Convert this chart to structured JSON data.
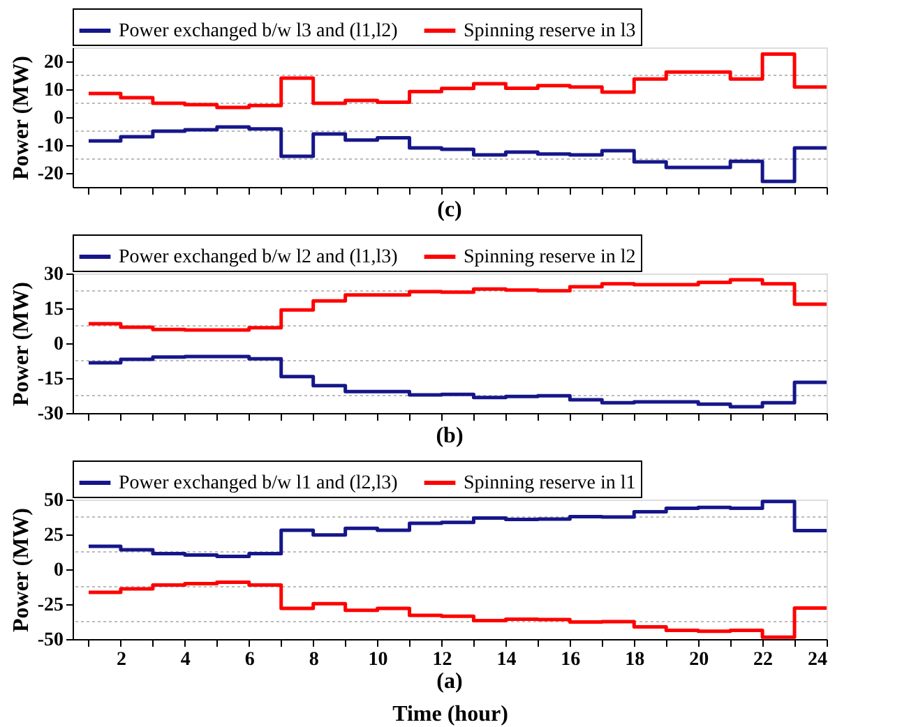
{
  "chart_data": [
    {
      "type": "step",
      "ylabel": "Power (MW)",
      "annotations": [
        "(c)"
      ],
      "legend": "top",
      "grid": "y",
      "tick_labels": "y",
      "line_style": "solid",
      "marker": "none",
      "x": [
        1,
        2,
        3,
        4,
        5,
        6,
        7,
        8,
        9,
        10,
        11,
        12,
        13,
        14,
        15,
        16,
        17,
        18,
        19,
        20,
        21,
        22,
        23,
        24
      ],
      "xlim": [
        0.5,
        24
      ],
      "xticks": [
        {
          "value": 1,
          "label": null
        },
        {
          "value": 2,
          "label": null
        },
        {
          "value": 3,
          "label": null
        },
        {
          "value": 4,
          "label": null
        },
        {
          "value": 5,
          "label": null
        },
        {
          "value": 6,
          "label": null
        },
        {
          "value": 7,
          "label": null
        },
        {
          "value": 8,
          "label": null
        },
        {
          "value": 9,
          "label": null
        },
        {
          "value": 10,
          "label": null
        },
        {
          "value": 11,
          "label": null
        },
        {
          "value": 12,
          "label": null
        },
        {
          "value": 13,
          "label": null
        },
        {
          "value": 14,
          "label": null
        },
        {
          "value": 15,
          "label": null
        },
        {
          "value": 16,
          "label": null
        },
        {
          "value": 17,
          "label": null
        },
        {
          "value": 18,
          "label": null
        },
        {
          "value": 19,
          "label": null
        },
        {
          "value": 20,
          "label": null
        },
        {
          "value": 21,
          "label": null
        },
        {
          "value": 22,
          "label": null
        },
        {
          "value": 23,
          "label": null
        },
        {
          "value": 24,
          "label": null
        }
      ],
      "ylim": [
        -25,
        25
      ],
      "yticks": [
        -20,
        {
          "value": -15,
          "label": null
        },
        -10,
        {
          "value": -5,
          "label": null
        },
        0,
        {
          "value": 5,
          "label": null
        },
        10,
        {
          "value": 15,
          "label": null
        },
        20
      ],
      "series": [
        {
          "name": "Power exchanged b/w l3 and (l1,l2)",
          "color": "#16168a",
          "values": [
            -8.5,
            -7,
            -5,
            -4.5,
            -3.5,
            -4.2,
            -14,
            -6,
            -8.2,
            -7.4,
            -11,
            -11.5,
            -13.5,
            -12.5,
            -13.2,
            -13.5,
            -12,
            -16,
            -18,
            -18,
            -15.8,
            -23,
            -11,
            -11
          ]
        },
        {
          "name": "Spinning reserve in l3",
          "color": "#ff0000",
          "values": [
            8.5,
            7,
            5,
            4.5,
            3.5,
            4.2,
            14,
            5,
            6,
            5.4,
            9.2,
            10.3,
            12,
            10.4,
            11.3,
            10.8,
            9,
            13.7,
            16.2,
            16.2,
            13.7,
            22.6,
            10.8,
            10.8
          ]
        }
      ]
    },
    {
      "type": "step",
      "ylabel": "Power (MW)",
      "annotations": [
        "(b)"
      ],
      "legend": "top",
      "grid": "y",
      "tick_labels": "y",
      "line_style": "solid",
      "marker": "none",
      "x": [
        1,
        2,
        3,
        4,
        5,
        6,
        7,
        8,
        9,
        10,
        11,
        12,
        13,
        14,
        15,
        16,
        17,
        18,
        19,
        20,
        21,
        22,
        23,
        24
      ],
      "xlim": [
        0.5,
        24
      ],
      "xticks": [
        {
          "value": 1,
          "label": null
        },
        {
          "value": 2,
          "label": null
        },
        {
          "value": 3,
          "label": null
        },
        {
          "value": 4,
          "label": null
        },
        {
          "value": 5,
          "label": null
        },
        {
          "value": 6,
          "label": null
        },
        {
          "value": 7,
          "label": null
        },
        {
          "value": 8,
          "label": null
        },
        {
          "value": 9,
          "label": null
        },
        {
          "value": 10,
          "label": null
        },
        {
          "value": 11,
          "label": null
        },
        {
          "value": 12,
          "label": null
        },
        {
          "value": 13,
          "label": null
        },
        {
          "value": 14,
          "label": null
        },
        {
          "value": 15,
          "label": null
        },
        {
          "value": 16,
          "label": null
        },
        {
          "value": 17,
          "label": null
        },
        {
          "value": 18,
          "label": null
        },
        {
          "value": 19,
          "label": null
        },
        {
          "value": 20,
          "label": null
        },
        {
          "value": 21,
          "label": null
        },
        {
          "value": 22,
          "label": null
        },
        {
          "value": 23,
          "label": null
        },
        {
          "value": 24,
          "label": null
        }
      ],
      "ylim": [
        -30,
        30
      ],
      "yticks": [
        -30,
        {
          "value": -22.5,
          "label": null
        },
        -15,
        {
          "value": -7.5,
          "label": null
        },
        0,
        {
          "value": 7.5,
          "label": null
        },
        15,
        {
          "value": 22.5,
          "label": null
        },
        30
      ],
      "series": [
        {
          "name": "Power exchanged b/w l2 and (l1,l3)",
          "color": "#16168a",
          "values": [
            -8.4,
            -6.9,
            -5.9,
            -5.7,
            -5.7,
            -6.7,
            -14.3,
            -18.2,
            -20.8,
            -20.8,
            -22.2,
            -22,
            -23.3,
            -22.9,
            -22.6,
            -24.3,
            -25.6,
            -25.2,
            -25.2,
            -26.2,
            -27.3,
            -25.6,
            -16.8,
            -16.8
          ]
        },
        {
          "name": "Spinning reserve in l2",
          "color": "#ff0000",
          "values": [
            8.4,
            6.9,
            5.9,
            5.7,
            5.7,
            6.7,
            14.3,
            18.2,
            20.8,
            20.8,
            22.2,
            22,
            23.3,
            22.9,
            22.6,
            24.3,
            25.6,
            25.2,
            25.2,
            26.2,
            27.3,
            25.6,
            16.8,
            16.8
          ]
        }
      ]
    },
    {
      "type": "step",
      "ylabel": "Power (MW)",
      "xlabel": "Time (hour)",
      "annotations": [
        "(a)"
      ],
      "legend": "top",
      "grid": "y",
      "line_style": "solid",
      "marker": "none",
      "x": [
        1,
        2,
        3,
        4,
        5,
        6,
        7,
        8,
        9,
        10,
        11,
        12,
        13,
        14,
        15,
        16,
        17,
        18,
        19,
        20,
        21,
        22,
        23,
        24
      ],
      "xlim": [
        0.5,
        24
      ],
      "xticks": [
        {
          "value": 1,
          "label": null
        },
        2,
        {
          "value": 3,
          "label": null
        },
        4,
        {
          "value": 5,
          "label": null
        },
        6,
        {
          "value": 7,
          "label": null
        },
        8,
        {
          "value": 9,
          "label": null
        },
        10,
        {
          "value": 11,
          "label": null
        },
        12,
        {
          "value": 13,
          "label": null
        },
        14,
        {
          "value": 15,
          "label": null
        },
        16,
        {
          "value": 17,
          "label": null
        },
        18,
        {
          "value": 19,
          "label": null
        },
        20,
        {
          "value": 21,
          "label": null
        },
        22,
        {
          "value": 23,
          "label": null
        },
        24
      ],
      "ylim": [
        -50,
        50
      ],
      "yticks": [
        -50,
        {
          "value": -37.5,
          "label": null
        },
        -25,
        {
          "value": -12.5,
          "label": null
        },
        0,
        {
          "value": 12.5,
          "label": null
        },
        25,
        {
          "value": 37.5,
          "label": null
        },
        50
      ],
      "series": [
        {
          "name": "Power exchanged b/w l1 and (l2,l3)",
          "color": "#16168a",
          "values": [
            16.5,
            14,
            11.3,
            10.3,
            9.2,
            11.3,
            28,
            24.6,
            29.4,
            28,
            33,
            33.6,
            36.8,
            35.7,
            36,
            37.8,
            37.5,
            41.3,
            43.7,
            44.4,
            43.7,
            48.6,
            27.7,
            27.7
          ]
        },
        {
          "name": "Spinning reserve in l1",
          "color": "#ff0000",
          "values": [
            -16.5,
            -14,
            -11.3,
            -10.3,
            -9.2,
            -11.3,
            -28,
            -24.6,
            -29.4,
            -28,
            -33,
            -33.6,
            -36.8,
            -35.7,
            -36,
            -37.8,
            -37.5,
            -41.3,
            -43.7,
            -44.4,
            -43.7,
            -48.6,
            -27.7,
            -27.7
          ]
        }
      ]
    }
  ]
}
